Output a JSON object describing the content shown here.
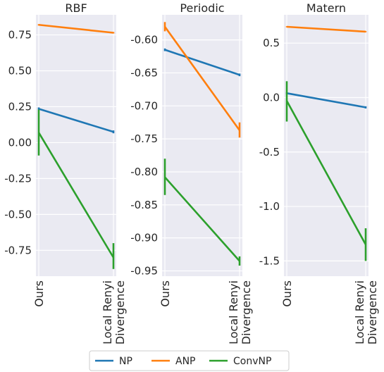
{
  "chart_data": [
    {
      "type": "line",
      "title": "RBF",
      "categories": [
        "Ours",
        "Local Renyi\nDivergence"
      ],
      "ylim": [
        -0.93,
        0.89
      ],
      "yticks": [
        "0.75",
        "0.50",
        "0.25",
        "0.00",
        "-0.25",
        "-0.50",
        "-0.75"
      ],
      "grid": true,
      "series": [
        {
          "name": "NP",
          "color": "#1f77b4",
          "values": [
            0.235,
            0.075
          ],
          "errors": [
            [
              0.23,
              0.245
            ],
            [
              0.065,
              0.085
            ]
          ]
        },
        {
          "name": "ANP",
          "color": "#ff7f0e",
          "values": [
            0.82,
            0.765
          ],
          "errors": [
            [
              0.815,
              0.825
            ],
            [
              0.76,
              0.77
            ]
          ]
        },
        {
          "name": "ConvNP",
          "color": "#2ca02c",
          "values": [
            0.07,
            -0.8
          ],
          "errors": [
            [
              -0.09,
              0.23
            ],
            [
              -0.88,
              -0.7
            ]
          ]
        }
      ]
    },
    {
      "type": "line",
      "title": "Periodic",
      "categories": [
        "Ours",
        "Local Renyi\nDivergence"
      ],
      "ylim": [
        -0.958,
        -0.562
      ],
      "yticks": [
        "-0.60",
        "-0.65",
        "-0.70",
        "-0.75",
        "-0.80",
        "-0.85",
        "-0.90",
        "-0.95"
      ],
      "grid": true,
      "series": [
        {
          "name": "NP",
          "color": "#1f77b4",
          "values": [
            -0.615,
            -0.653
          ],
          "errors": [
            [
              -0.617,
              -0.613
            ],
            [
              -0.655,
              -0.651
            ]
          ]
        },
        {
          "name": "ANP",
          "color": "#ff7f0e",
          "values": [
            -0.58,
            -0.737
          ],
          "errors": [
            [
              -0.587,
              -0.573
            ],
            [
              -0.748,
              -0.725
            ]
          ]
        },
        {
          "name": "ConvNP",
          "color": "#2ca02c",
          "values": [
            -0.808,
            -0.935
          ],
          "errors": [
            [
              -0.835,
              -0.78
            ],
            [
              -0.942,
              -0.928
            ]
          ]
        }
      ]
    },
    {
      "type": "line",
      "title": "Matern",
      "categories": [
        "Ours",
        "Local Renyi\nDivergence"
      ],
      "ylim": [
        -1.64,
        0.76
      ],
      "yticks": [
        "0.5",
        "0.0",
        "-0.5",
        "-1.0",
        "-1.5"
      ],
      "grid": true,
      "series": [
        {
          "name": "NP",
          "color": "#1f77b4",
          "values": [
            0.04,
            -0.09
          ],
          "errors": [
            [
              0.03,
              0.05
            ],
            [
              -0.1,
              -0.08
            ]
          ]
        },
        {
          "name": "ANP",
          "color": "#ff7f0e",
          "values": [
            0.65,
            0.605
          ],
          "errors": [
            [
              0.645,
              0.655
            ],
            [
              0.6,
              0.61
            ]
          ]
        },
        {
          "name": "ConvNP",
          "color": "#2ca02c",
          "values": [
            -0.03,
            -1.35
          ],
          "errors": [
            [
              -0.22,
              0.15
            ],
            [
              -1.5,
              -1.2
            ]
          ]
        }
      ]
    }
  ],
  "legend": {
    "placement": "bottom-center",
    "entries": [
      {
        "label": "NP",
        "color": "#1f77b4"
      },
      {
        "label": "ANP",
        "color": "#ff7f0e"
      },
      {
        "label": "ConvNP",
        "color": "#2ca02c"
      }
    ]
  },
  "colors": {
    "panel_bg": "#eaeaf2",
    "grid": "#ffffff",
    "text": "#262626"
  }
}
